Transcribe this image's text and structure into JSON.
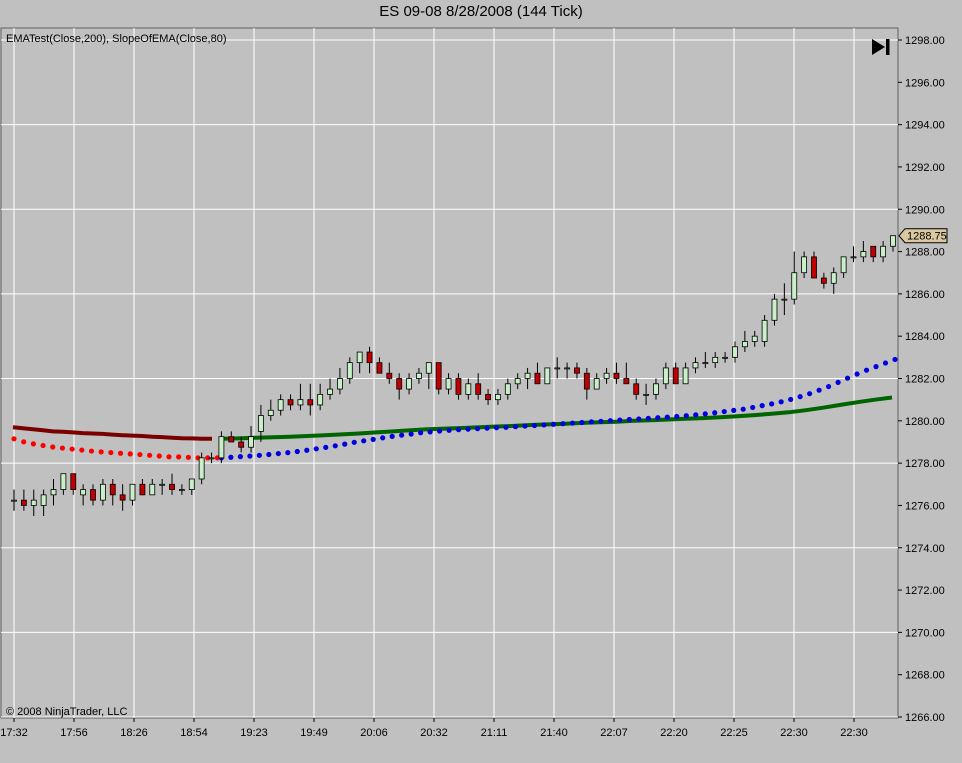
{
  "window": {
    "title": "ES 09-08  8/28/2008 (144 Tick)",
    "indicator_label": "EMATest(Close,200), SlopeOfEMA(Close,80)",
    "copyright": "© 2008 NinjaTrader, LLC",
    "nav_icon": "skip-to-end-icon"
  },
  "colors": {
    "background": "#c0c0c0",
    "grid": "#ffffff",
    "up_candle": "#c8f0c8",
    "down_candle": "#c00000",
    "ema_red_line": "#7a0000",
    "ema_green_line": "#006400",
    "slope_red_dots": "#ff0000",
    "slope_blue_dots": "#0000e0",
    "price_marker": "#d9c8a0"
  },
  "chart_data": {
    "type": "candlestick",
    "title": "ES 09-08  8/28/2008 (144 Tick)",
    "ylim": [
      1266,
      1298
    ],
    "y_ticks": [
      "1298.00",
      "1296.00",
      "1294.00",
      "1292.00",
      "1290.00",
      "1288.00",
      "1286.00",
      "1284.00",
      "1282.00",
      "1280.00",
      "1278.00",
      "1276.00",
      "1274.00",
      "1272.00",
      "1270.00",
      "1268.00",
      "1266.00"
    ],
    "x_ticks": [
      "17:32",
      "17:56",
      "18:26",
      "18:54",
      "19:23",
      "19:49",
      "20:06",
      "20:32",
      "21:11",
      "21:40",
      "22:07",
      "22:20",
      "22:25",
      "22:30",
      "22:30"
    ],
    "last_price": "1288.75",
    "candles": [
      {
        "o": 1276.25,
        "h": 1276.75,
        "l": 1275.75,
        "c": 1276.25
      },
      {
        "o": 1276.25,
        "h": 1276.75,
        "l": 1275.75,
        "c": 1276.0
      },
      {
        "o": 1276.0,
        "h": 1276.75,
        "l": 1275.5,
        "c": 1276.25
      },
      {
        "o": 1276.0,
        "h": 1276.75,
        "l": 1275.5,
        "c": 1276.5
      },
      {
        "o": 1276.5,
        "h": 1277.25,
        "l": 1276.0,
        "c": 1276.75
      },
      {
        "o": 1276.75,
        "h": 1277.5,
        "l": 1276.5,
        "c": 1277.5
      },
      {
        "o": 1277.5,
        "h": 1277.5,
        "l": 1276.5,
        "c": 1276.75
      },
      {
        "o": 1276.5,
        "h": 1277.0,
        "l": 1276.0,
        "c": 1276.75
      },
      {
        "o": 1276.75,
        "h": 1277.0,
        "l": 1276.0,
        "c": 1276.25
      },
      {
        "o": 1276.25,
        "h": 1277.25,
        "l": 1276.0,
        "c": 1277.0
      },
      {
        "o": 1277.0,
        "h": 1277.25,
        "l": 1276.0,
        "c": 1276.5
      },
      {
        "o": 1276.5,
        "h": 1277.0,
        "l": 1275.75,
        "c": 1276.25
      },
      {
        "o": 1276.25,
        "h": 1277.0,
        "l": 1276.0,
        "c": 1277.0
      },
      {
        "o": 1277.0,
        "h": 1277.25,
        "l": 1276.5,
        "c": 1276.5
      },
      {
        "o": 1276.5,
        "h": 1277.25,
        "l": 1276.5,
        "c": 1277.0
      },
      {
        "o": 1277.0,
        "h": 1277.25,
        "l": 1276.5,
        "c": 1277.0
      },
      {
        "o": 1277.0,
        "h": 1277.5,
        "l": 1276.5,
        "c": 1276.75
      },
      {
        "o": 1276.75,
        "h": 1277.0,
        "l": 1276.5,
        "c": 1276.75
      },
      {
        "o": 1276.75,
        "h": 1277.25,
        "l": 1276.5,
        "c": 1277.25
      },
      {
        "o": 1277.25,
        "h": 1278.5,
        "l": 1277.0,
        "c": 1278.25
      },
      {
        "o": 1278.25,
        "h": 1278.5,
        "l": 1278.0,
        "c": 1278.25
      },
      {
        "o": 1278.25,
        "h": 1279.5,
        "l": 1278.0,
        "c": 1279.25
      },
      {
        "o": 1279.25,
        "h": 1279.5,
        "l": 1279.0,
        "c": 1279.0
      },
      {
        "o": 1279.0,
        "h": 1279.25,
        "l": 1278.5,
        "c": 1278.75
      },
      {
        "o": 1278.75,
        "h": 1279.75,
        "l": 1278.5,
        "c": 1279.25
      },
      {
        "o": 1279.5,
        "h": 1280.75,
        "l": 1279.0,
        "c": 1280.25
      },
      {
        "o": 1280.25,
        "h": 1281.0,
        "l": 1280.0,
        "c": 1280.5
      },
      {
        "o": 1280.5,
        "h": 1281.25,
        "l": 1280.25,
        "c": 1281.0
      },
      {
        "o": 1281.0,
        "h": 1281.25,
        "l": 1280.5,
        "c": 1280.75
      },
      {
        "o": 1280.75,
        "h": 1281.75,
        "l": 1280.5,
        "c": 1281.0
      },
      {
        "o": 1281.0,
        "h": 1281.75,
        "l": 1280.25,
        "c": 1280.75
      },
      {
        "o": 1280.75,
        "h": 1281.75,
        "l": 1280.5,
        "c": 1281.25
      },
      {
        "o": 1281.25,
        "h": 1282.0,
        "l": 1281.0,
        "c": 1281.5
      },
      {
        "o": 1281.5,
        "h": 1282.5,
        "l": 1281.25,
        "c": 1282.0
      },
      {
        "o": 1282.0,
        "h": 1283.0,
        "l": 1281.75,
        "c": 1282.75
      },
      {
        "o": 1282.75,
        "h": 1283.25,
        "l": 1282.25,
        "c": 1283.25
      },
      {
        "o": 1283.25,
        "h": 1283.5,
        "l": 1282.25,
        "c": 1282.75
      },
      {
        "o": 1282.75,
        "h": 1283.0,
        "l": 1282.25,
        "c": 1282.25
      },
      {
        "o": 1282.25,
        "h": 1282.75,
        "l": 1281.75,
        "c": 1282.0
      },
      {
        "o": 1282.0,
        "h": 1282.25,
        "l": 1281.0,
        "c": 1281.5
      },
      {
        "o": 1281.5,
        "h": 1282.25,
        "l": 1281.25,
        "c": 1282.0
      },
      {
        "o": 1282.0,
        "h": 1282.5,
        "l": 1281.75,
        "c": 1282.25
      },
      {
        "o": 1282.25,
        "h": 1282.75,
        "l": 1281.5,
        "c": 1282.75
      },
      {
        "o": 1282.75,
        "h": 1282.75,
        "l": 1281.25,
        "c": 1281.5
      },
      {
        "o": 1281.5,
        "h": 1282.25,
        "l": 1281.25,
        "c": 1282.0
      },
      {
        "o": 1282.0,
        "h": 1282.25,
        "l": 1281.0,
        "c": 1281.25
      },
      {
        "o": 1281.25,
        "h": 1282.0,
        "l": 1281.0,
        "c": 1281.75
      },
      {
        "o": 1281.75,
        "h": 1282.25,
        "l": 1281.0,
        "c": 1281.25
      },
      {
        "o": 1281.25,
        "h": 1281.5,
        "l": 1280.75,
        "c": 1281.0
      },
      {
        "o": 1281.0,
        "h": 1281.5,
        "l": 1280.75,
        "c": 1281.25
      },
      {
        "o": 1281.25,
        "h": 1282.0,
        "l": 1281.0,
        "c": 1281.75
      },
      {
        "o": 1281.75,
        "h": 1282.25,
        "l": 1281.5,
        "c": 1282.0
      },
      {
        "o": 1282.0,
        "h": 1282.5,
        "l": 1281.5,
        "c": 1282.25
      },
      {
        "o": 1282.25,
        "h": 1282.75,
        "l": 1281.75,
        "c": 1281.75
      },
      {
        "o": 1281.75,
        "h": 1282.5,
        "l": 1281.75,
        "c": 1282.5
      },
      {
        "o": 1282.5,
        "h": 1283.0,
        "l": 1282.0,
        "c": 1282.5
      },
      {
        "o": 1282.5,
        "h": 1282.75,
        "l": 1282.0,
        "c": 1282.5
      },
      {
        "o": 1282.5,
        "h": 1282.75,
        "l": 1282.0,
        "c": 1282.25
      },
      {
        "o": 1282.25,
        "h": 1282.5,
        "l": 1281.0,
        "c": 1281.5
      },
      {
        "o": 1281.5,
        "h": 1282.25,
        "l": 1281.5,
        "c": 1282.0
      },
      {
        "o": 1282.0,
        "h": 1282.5,
        "l": 1281.75,
        "c": 1282.25
      },
      {
        "o": 1282.25,
        "h": 1282.75,
        "l": 1281.75,
        "c": 1282.0
      },
      {
        "o": 1282.0,
        "h": 1282.75,
        "l": 1281.75,
        "c": 1281.75
      },
      {
        "o": 1281.75,
        "h": 1282.0,
        "l": 1281.0,
        "c": 1281.25
      },
      {
        "o": 1281.25,
        "h": 1281.75,
        "l": 1280.75,
        "c": 1281.25
      },
      {
        "o": 1281.25,
        "h": 1282.0,
        "l": 1281.0,
        "c": 1281.75
      },
      {
        "o": 1281.75,
        "h": 1282.75,
        "l": 1281.5,
        "c": 1282.5
      },
      {
        "o": 1282.5,
        "h": 1282.75,
        "l": 1281.75,
        "c": 1281.75
      },
      {
        "o": 1281.75,
        "h": 1282.75,
        "l": 1281.75,
        "c": 1282.5
      },
      {
        "o": 1282.5,
        "h": 1283.0,
        "l": 1282.25,
        "c": 1282.75
      },
      {
        "o": 1282.75,
        "h": 1283.25,
        "l": 1282.5,
        "c": 1282.75
      },
      {
        "o": 1282.75,
        "h": 1283.25,
        "l": 1282.5,
        "c": 1283.0
      },
      {
        "o": 1283.0,
        "h": 1283.25,
        "l": 1282.75,
        "c": 1283.0
      },
      {
        "o": 1283.0,
        "h": 1283.75,
        "l": 1282.75,
        "c": 1283.5
      },
      {
        "o": 1283.5,
        "h": 1284.25,
        "l": 1283.25,
        "c": 1283.75
      },
      {
        "o": 1283.75,
        "h": 1284.25,
        "l": 1283.5,
        "c": 1284.0
      },
      {
        "o": 1283.75,
        "h": 1285.0,
        "l": 1283.5,
        "c": 1284.75
      },
      {
        "o": 1284.75,
        "h": 1286.0,
        "l": 1284.5,
        "c": 1285.75
      },
      {
        "o": 1285.75,
        "h": 1286.5,
        "l": 1285.0,
        "c": 1285.75
      },
      {
        "o": 1285.75,
        "h": 1288.0,
        "l": 1285.5,
        "c": 1287.0
      },
      {
        "o": 1287.0,
        "h": 1288.0,
        "l": 1286.75,
        "c": 1287.75
      },
      {
        "o": 1287.75,
        "h": 1288.0,
        "l": 1286.75,
        "c": 1286.75
      },
      {
        "o": 1286.75,
        "h": 1287.0,
        "l": 1286.25,
        "c": 1286.5
      },
      {
        "o": 1286.5,
        "h": 1287.25,
        "l": 1286.0,
        "c": 1287.0
      },
      {
        "o": 1287.0,
        "h": 1287.75,
        "l": 1286.75,
        "c": 1287.75
      },
      {
        "o": 1287.75,
        "h": 1288.25,
        "l": 1287.5,
        "c": 1287.75
      },
      {
        "o": 1287.75,
        "h": 1288.5,
        "l": 1287.5,
        "c": 1288.0
      },
      {
        "o": 1288.25,
        "h": 1288.25,
        "l": 1287.5,
        "c": 1287.75
      },
      {
        "o": 1287.75,
        "h": 1288.5,
        "l": 1287.5,
        "c": 1288.25
      },
      {
        "o": 1288.25,
        "h": 1288.75,
        "l": 1288.0,
        "c": 1288.75
      }
    ],
    "ema_red": [
      1279.7,
      1279.65,
      1279.6,
      1279.55,
      1279.5,
      1279.48,
      1279.45,
      1279.42,
      1279.4,
      1279.38,
      1279.35,
      1279.32,
      1279.3,
      1279.28,
      1279.25,
      1279.23,
      1279.2,
      1279.18,
      1279.17,
      1279.15,
      1279.15
    ],
    "ema_green": [
      1279.15,
      1279.17,
      1279.2,
      1279.22,
      1279.25,
      1279.28,
      1279.32,
      1279.36,
      1279.4,
      1279.45,
      1279.5,
      1279.55,
      1279.6,
      1279.63,
      1279.66,
      1279.7,
      1279.73,
      1279.76,
      1279.8,
      1279.83,
      1279.86,
      1279.9,
      1279.93,
      1279.96,
      1280.0,
      1280.03,
      1280.06,
      1280.1,
      1280.13,
      1280.17,
      1280.22,
      1280.27,
      1280.33,
      1280.4,
      1280.5,
      1280.62,
      1280.75,
      1280.88,
      1281.0,
      1281.1
    ],
    "slope_red": [
      1279.15,
      1279.0,
      1278.9,
      1278.82,
      1278.75,
      1278.7,
      1278.65,
      1278.6,
      1278.55,
      1278.52,
      1278.48,
      1278.45,
      1278.42,
      1278.38,
      1278.35,
      1278.3,
      1278.3,
      1278.28,
      1278.25,
      1278.25,
      1278.25
    ],
    "slope_blue": [
      1278.25,
      1278.3,
      1278.35,
      1278.42,
      1278.5,
      1278.6,
      1278.72,
      1278.85,
      1279.0,
      1279.12,
      1279.25,
      1279.35,
      1279.45,
      1279.52,
      1279.58,
      1279.62,
      1279.66,
      1279.7,
      1279.75,
      1279.8,
      1279.85,
      1279.9,
      1279.95,
      1280.0,
      1280.05,
      1280.1,
      1280.15,
      1280.2,
      1280.27,
      1280.35,
      1280.45,
      1280.55,
      1280.7,
      1280.85,
      1281.05,
      1281.3,
      1281.6,
      1281.95,
      1282.3,
      1282.6,
      1282.9
    ]
  }
}
